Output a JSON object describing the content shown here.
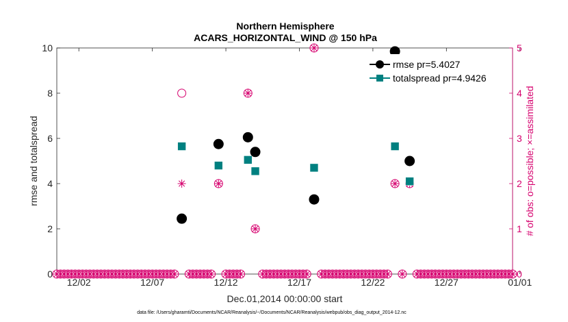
{
  "chart_data": {
    "type": "scatter",
    "title": "Northern Hemisphere",
    "subtitle": "ACARS_HORIZONTAL_WIND @ 150 hPa",
    "xlabel": "Dec.01,2014 00:00:00 start",
    "ylabel": "rmse and totalspread",
    "ylabel_right": "# of obs: o=possible; ×=assimilated",
    "footnote": "data file: /Users/gharamti/Documents/NCAR/Reanalysis/~/Documents/NCAR/Reanalysis/webpub/obs_diag_output_2014-12.nc",
    "xlim": [
      0.5,
      31.5
    ],
    "ylim": [
      0,
      10
    ],
    "ylim_right": [
      0,
      5
    ],
    "x_ticks": [
      {
        "x": 2,
        "label": "12/02"
      },
      {
        "x": 7,
        "label": "12/07"
      },
      {
        "x": 12,
        "label": "12/12"
      },
      {
        "x": 17,
        "label": "12/17"
      },
      {
        "x": 22,
        "label": "12/22"
      },
      {
        "x": 27,
        "label": "12/27"
      },
      {
        "x": 32,
        "label": "01/01"
      }
    ],
    "y_ticks": [
      "0",
      "2",
      "4",
      "6",
      "8",
      "10"
    ],
    "y_ticks_right": [
      "0",
      "1",
      "2",
      "3",
      "4",
      "5"
    ],
    "legend_position": "top-right",
    "series": [
      {
        "name": "rmse",
        "legend": "rmse pr=5.4027",
        "color": "#000000",
        "points": [
          [
            9.0,
            2.45
          ],
          [
            11.5,
            5.75
          ],
          [
            13.5,
            6.05
          ],
          [
            14.0,
            5.4
          ],
          [
            18.0,
            3.3
          ],
          [
            23.5,
            9.85
          ],
          [
            24.5,
            5.0
          ]
        ]
      },
      {
        "name": "totalspread",
        "legend": "totalspread pr=4.9426",
        "color": "#008080",
        "points": [
          [
            9.0,
            5.65
          ],
          [
            11.5,
            4.8
          ],
          [
            13.5,
            5.05
          ],
          [
            14.0,
            4.55
          ],
          [
            18.0,
            4.7
          ],
          [
            23.5,
            5.65
          ],
          [
            24.5,
            4.1
          ]
        ]
      }
    ],
    "obs_possible": {
      "color": "#d6006e",
      "points": [
        [
          9.0,
          4
        ],
        [
          11.5,
          2
        ],
        [
          13.5,
          4
        ],
        [
          14.0,
          1
        ],
        [
          18.0,
          5
        ],
        [
          23.5,
          2
        ],
        [
          24.5,
          2
        ]
      ]
    },
    "obs_assimilated": {
      "color": "#d6006e",
      "points": [
        [
          9.0,
          2
        ],
        [
          11.5,
          2
        ],
        [
          13.5,
          4
        ],
        [
          14.0,
          1
        ],
        [
          18.0,
          5
        ],
        [
          23.5,
          2
        ],
        [
          24.5,
          2
        ]
      ]
    },
    "zero_obs_step": 0.25
  }
}
